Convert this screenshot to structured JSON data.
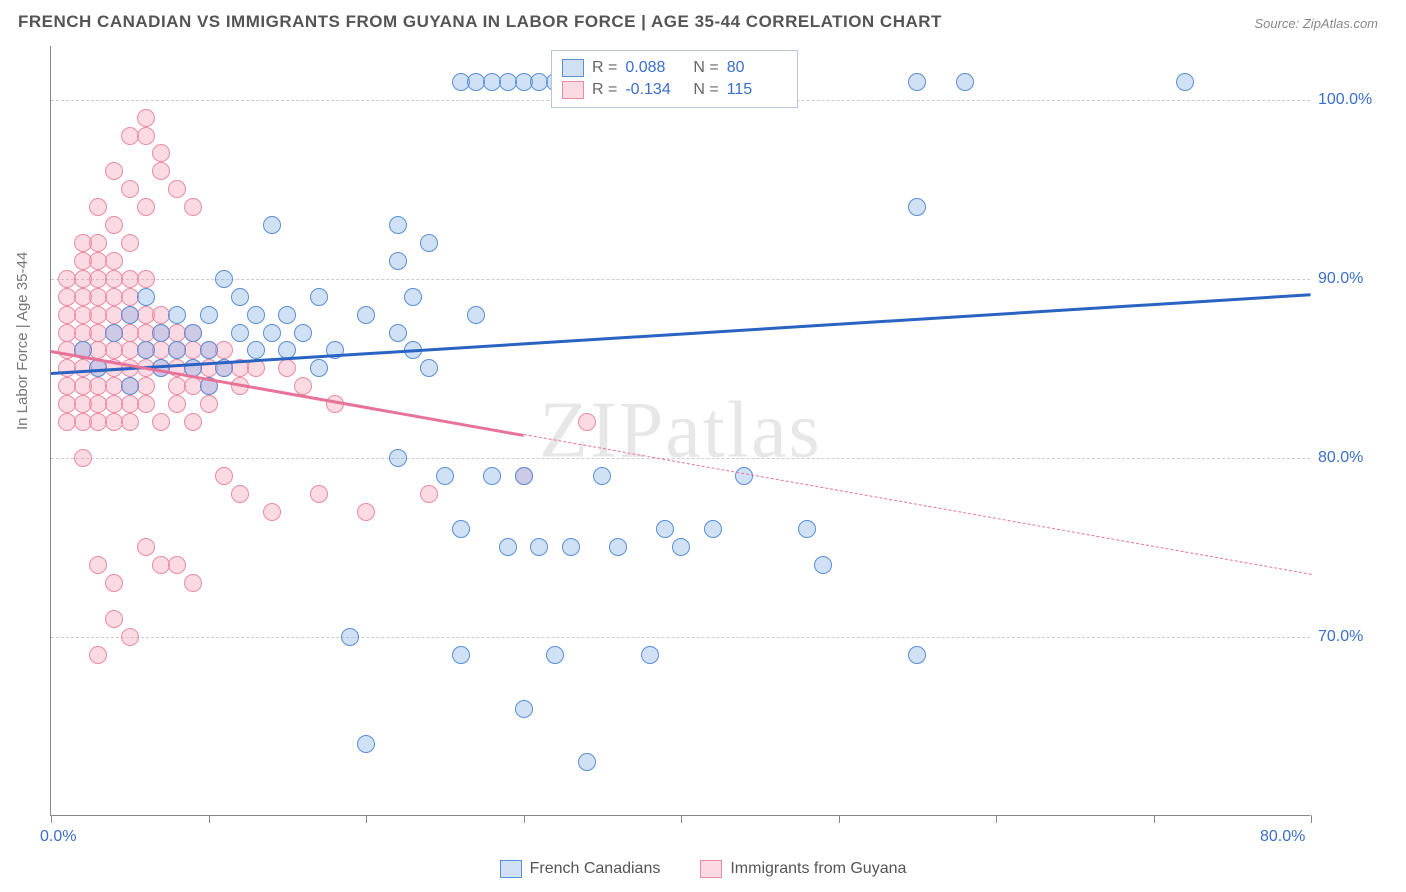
{
  "title": "FRENCH CANADIAN VS IMMIGRANTS FROM GUYANA IN LABOR FORCE | AGE 35-44 CORRELATION CHART",
  "source": "Source: ZipAtlas.com",
  "ylabel": "In Labor Force | Age 35-44",
  "watermark": "ZIPatlas",
  "chart": {
    "type": "scatter",
    "xlim": [
      0,
      80
    ],
    "ylim": [
      60,
      103
    ],
    "yticks": [
      70,
      80,
      90,
      100
    ],
    "ytick_labels": [
      "70.0%",
      "80.0%",
      "90.0%",
      "100.0%"
    ],
    "xticks": [
      0,
      10,
      20,
      30,
      40,
      50,
      60,
      70,
      80
    ],
    "x_labels": {
      "0": "0.0%",
      "80": "80.0%"
    },
    "background_color": "#ffffff",
    "grid_color": "#cccccc",
    "marker_radius": 9,
    "marker_border_width": 1.2,
    "trend_line_width": 3
  },
  "series": {
    "blue": {
      "label": "French Canadians",
      "fill": "rgba(120,170,230,0.35)",
      "stroke": "#5a8fd6",
      "trend_color": "#2a63c1",
      "R": "0.088",
      "N": "80",
      "trend": {
        "x1": 0,
        "y1": 84.8,
        "x2": 80,
        "y2": 89.2,
        "dash": false
      },
      "points": [
        [
          2,
          86
        ],
        [
          3,
          85
        ],
        [
          4,
          87
        ],
        [
          5,
          84
        ],
        [
          5,
          88
        ],
        [
          6,
          86
        ],
        [
          6,
          89
        ],
        [
          7,
          85
        ],
        [
          7,
          87
        ],
        [
          8,
          86
        ],
        [
          8,
          88
        ],
        [
          9,
          85
        ],
        [
          9,
          87
        ],
        [
          10,
          86
        ],
        [
          10,
          84
        ],
        [
          11,
          85
        ],
        [
          12,
          87
        ],
        [
          12,
          89
        ],
        [
          13,
          86
        ],
        [
          13,
          88
        ],
        [
          14,
          87
        ],
        [
          14,
          93
        ],
        [
          15,
          86
        ],
        [
          15,
          88
        ],
        [
          16,
          87
        ],
        [
          17,
          85
        ],
        [
          17,
          89
        ],
        [
          18,
          86
        ],
        [
          20,
          88
        ],
        [
          22,
          87
        ],
        [
          22,
          93
        ],
        [
          22,
          80
        ],
        [
          23,
          86
        ],
        [
          24,
          85
        ],
        [
          24,
          92
        ],
        [
          25,
          79
        ],
        [
          26,
          101
        ],
        [
          27,
          101
        ],
        [
          28,
          101
        ],
        [
          29,
          101
        ],
        [
          30,
          101
        ],
        [
          31,
          101
        ],
        [
          32,
          101
        ],
        [
          33,
          101
        ],
        [
          34,
          101
        ],
        [
          35,
          101
        ],
        [
          39,
          101
        ],
        [
          55,
          101
        ],
        [
          58,
          101
        ],
        [
          72,
          101
        ],
        [
          26,
          76
        ],
        [
          26,
          69
        ],
        [
          27,
          88
        ],
        [
          28,
          79
        ],
        [
          29,
          75
        ],
        [
          30,
          79
        ],
        [
          30,
          66
        ],
        [
          31,
          75
        ],
        [
          32,
          69
        ],
        [
          33,
          75
        ],
        [
          34,
          63
        ],
        [
          35,
          79
        ],
        [
          36,
          75
        ],
        [
          38,
          69
        ],
        [
          39,
          76
        ],
        [
          40,
          75
        ],
        [
          42,
          76
        ],
        [
          44,
          79
        ],
        [
          48,
          76
        ],
        [
          49,
          74
        ],
        [
          55,
          94
        ],
        [
          55,
          69
        ],
        [
          20,
          64
        ],
        [
          36,
          101
        ],
        [
          37,
          101
        ],
        [
          22,
          91
        ],
        [
          23,
          89
        ],
        [
          11,
          90
        ],
        [
          10,
          88
        ],
        [
          19,
          70
        ]
      ]
    },
    "pink": {
      "label": "Immigrants from Guyana",
      "fill": "rgba(245,150,175,0.35)",
      "stroke": "#e98ba5",
      "trend_color": "#e77399",
      "R": "-0.134",
      "N": "115",
      "trend": {
        "x1": 0,
        "y1": 86.0,
        "x2": 80,
        "y2": 73.5,
        "dash_after_x": 30
      },
      "points": [
        [
          1,
          86
        ],
        [
          1,
          85
        ],
        [
          1,
          87
        ],
        [
          1,
          84
        ],
        [
          1,
          88
        ],
        [
          1,
          89
        ],
        [
          1,
          83
        ],
        [
          1,
          90
        ],
        [
          2,
          86
        ],
        [
          2,
          85
        ],
        [
          2,
          87
        ],
        [
          2,
          84
        ],
        [
          2,
          88
        ],
        [
          2,
          89
        ],
        [
          2,
          83
        ],
        [
          2,
          82
        ],
        [
          2,
          90
        ],
        [
          2,
          91
        ],
        [
          3,
          86
        ],
        [
          3,
          85
        ],
        [
          3,
          87
        ],
        [
          3,
          84
        ],
        [
          3,
          88
        ],
        [
          3,
          89
        ],
        [
          3,
          83
        ],
        [
          3,
          90
        ],
        [
          3,
          91
        ],
        [
          3,
          92
        ],
        [
          4,
          86
        ],
        [
          4,
          85
        ],
        [
          4,
          87
        ],
        [
          4,
          84
        ],
        [
          4,
          88
        ],
        [
          4,
          89
        ],
        [
          4,
          83
        ],
        [
          4,
          90
        ],
        [
          4,
          91
        ],
        [
          4,
          93
        ],
        [
          5,
          86
        ],
        [
          5,
          85
        ],
        [
          5,
          87
        ],
        [
          5,
          84
        ],
        [
          5,
          88
        ],
        [
          5,
          89
        ],
        [
          5,
          83
        ],
        [
          5,
          90
        ],
        [
          5,
          92
        ],
        [
          5,
          95
        ],
        [
          6,
          86
        ],
        [
          6,
          85
        ],
        [
          6,
          87
        ],
        [
          6,
          84
        ],
        [
          6,
          88
        ],
        [
          6,
          83
        ],
        [
          6,
          90
        ],
        [
          6,
          94
        ],
        [
          6,
          98
        ],
        [
          6,
          99
        ],
        [
          7,
          86
        ],
        [
          7,
          85
        ],
        [
          7,
          87
        ],
        [
          7,
          88
        ],
        [
          7,
          82
        ],
        [
          7,
          97
        ],
        [
          7,
          96
        ],
        [
          8,
          86
        ],
        [
          8,
          85
        ],
        [
          8,
          87
        ],
        [
          8,
          84
        ],
        [
          8,
          83
        ],
        [
          8,
          95
        ],
        [
          9,
          86
        ],
        [
          9,
          85
        ],
        [
          9,
          87
        ],
        [
          9,
          84
        ],
        [
          9,
          82
        ],
        [
          9,
          94
        ],
        [
          10,
          86
        ],
        [
          10,
          85
        ],
        [
          10,
          84
        ],
        [
          10,
          83
        ],
        [
          11,
          86
        ],
        [
          11,
          85
        ],
        [
          11,
          79
        ],
        [
          12,
          85
        ],
        [
          12,
          84
        ],
        [
          12,
          78
        ],
        [
          13,
          85
        ],
        [
          14,
          77
        ],
        [
          15,
          85
        ],
        [
          16,
          84
        ],
        [
          17,
          78
        ],
        [
          18,
          83
        ],
        [
          20,
          77
        ],
        [
          24,
          78
        ],
        [
          30,
          79
        ],
        [
          34,
          82
        ],
        [
          3,
          74
        ],
        [
          4,
          73
        ],
        [
          2,
          80
        ],
        [
          3,
          82
        ],
        [
          4,
          82
        ],
        [
          5,
          82
        ],
        [
          1,
          82
        ],
        [
          2,
          92
        ],
        [
          3,
          94
        ],
        [
          4,
          96
        ],
        [
          5,
          98
        ],
        [
          6,
          75
        ],
        [
          7,
          74
        ],
        [
          8,
          74
        ],
        [
          5,
          70
        ],
        [
          4,
          71
        ],
        [
          3,
          69
        ],
        [
          9,
          73
        ]
      ]
    }
  },
  "stats_box": {
    "rows": [
      {
        "color": "blue",
        "r_label": "R =",
        "r_val": "0.088",
        "n_label": "N =",
        "n_val": "80"
      },
      {
        "color": "pink",
        "r_label": "R =",
        "r_val": "-0.134",
        "n_label": "N =",
        "n_val": "115"
      }
    ]
  },
  "bottom_legend": [
    {
      "color": "blue",
      "label": "French Canadians"
    },
    {
      "color": "pink",
      "label": "Immigrants from Guyana"
    }
  ]
}
